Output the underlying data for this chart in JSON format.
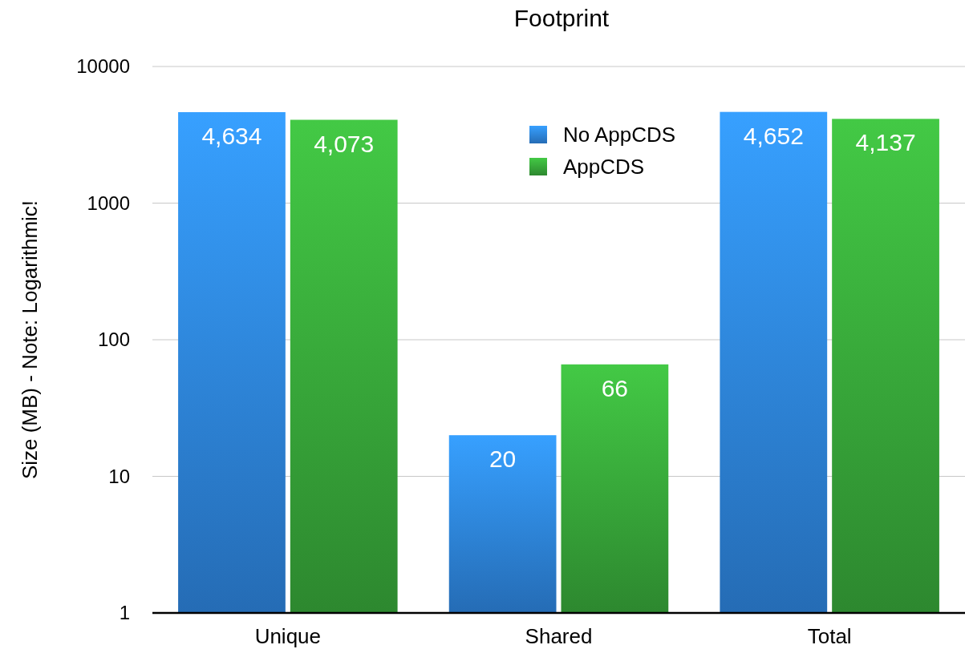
{
  "chart_data": {
    "type": "bar",
    "title": "Footprint",
    "ylabel": "Size (MB) - Note: Logarithmic!",
    "categories": [
      "Unique",
      "Shared",
      "Total"
    ],
    "series": [
      {
        "name": "No AppCDS",
        "color": "#2e86e0",
        "values": [
          4634,
          20,
          4652
        ],
        "value_labels": [
          "4,634",
          "20",
          "4,652"
        ]
      },
      {
        "name": "AppCDS",
        "color": "#38a83a",
        "values": [
          4073,
          66,
          4137
        ],
        "value_labels": [
          "4,073",
          "66",
          "4,137"
        ]
      }
    ],
    "log": true,
    "ylim": [
      1,
      10000
    ],
    "yticks": [
      1,
      10,
      100,
      1000,
      10000
    ],
    "grid": "y",
    "legend": "top"
  }
}
